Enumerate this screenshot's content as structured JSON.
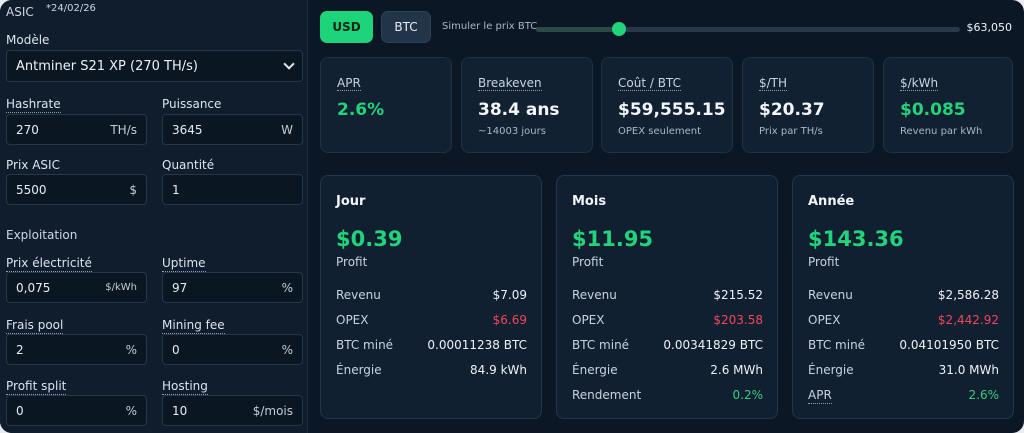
{
  "asic": {
    "title": "ASIC",
    "date": "*24/02/26",
    "model_label": "Modèle",
    "model_value": "Antminer S21 XP (270 TH/s)",
    "hashrate_label": "Hashrate",
    "hashrate_value": "270",
    "hashrate_unit": "TH/s",
    "power_label": "Puissance",
    "power_value": "3645",
    "power_unit": "W",
    "price_label": "Prix ASIC",
    "price_value": "5500",
    "price_unit": "$",
    "qty_label": "Quantité",
    "qty_value": "1"
  },
  "exploitation": {
    "title": "Exploitation",
    "elec_label": "Prix électricité",
    "elec_value": "0,075",
    "elec_unit": "$/kWh",
    "uptime_label": "Uptime",
    "uptime_value": "97",
    "uptime_unit": "%",
    "pool_label": "Frais pool",
    "pool_value": "2",
    "pool_unit": "%",
    "mining_fee_label": "Mining fee",
    "mining_fee_value": "0",
    "mining_fee_unit": "%",
    "split_label": "Profit split",
    "split_value": "0",
    "split_unit": "%",
    "hosting_label": "Hosting",
    "hosting_value": "10",
    "hosting_unit": "$/mois"
  },
  "topbar": {
    "usd_label": "USD",
    "btc_label": "BTC",
    "sim_label": "Simuler le prix BTC",
    "btc_price": "$63,050",
    "slider_fraction": 0.195
  },
  "metrics": [
    {
      "title": "APR",
      "value": "2.6%",
      "sub": ""
    },
    {
      "title": "Breakeven",
      "value": "38.4 ans",
      "sub": "~14003 jours"
    },
    {
      "title": "Coût / BTC",
      "value": "$59,555.15",
      "sub": "OPEX seulement"
    },
    {
      "title": "$/TH",
      "value": "$20.37",
      "sub": "Prix par TH/s"
    },
    {
      "title": "$/kWh",
      "value": "$0.085",
      "sub": "Revenu par kWh"
    }
  ],
  "periods": [
    {
      "title": "Jour",
      "profit": "$0.39",
      "profit_label": "Profit",
      "rows": [
        {
          "k": "Revenu",
          "v": "$7.09"
        },
        {
          "k": "OPEX",
          "v": "$6.69"
        },
        {
          "k": "BTC miné",
          "v": "0.00011238 BTC"
        },
        {
          "k": "Énergie",
          "v": "84.9 kWh"
        }
      ]
    },
    {
      "title": "Mois",
      "profit": "$11.95",
      "profit_label": "Profit",
      "rows": [
        {
          "k": "Revenu",
          "v": "$215.52"
        },
        {
          "k": "OPEX",
          "v": "$203.58"
        },
        {
          "k": "BTC miné",
          "v": "0.00341829 BTC"
        },
        {
          "k": "Énergie",
          "v": "2.6 MWh"
        },
        {
          "k": "Rendement",
          "v": "0.2%"
        }
      ]
    },
    {
      "title": "Année",
      "profit": "$143.36",
      "profit_label": "Profit",
      "rows": [
        {
          "k": "Revenu",
          "v": "$2,586.28"
        },
        {
          "k": "OPEX",
          "v": "$2,442.92"
        },
        {
          "k": "BTC miné",
          "v": "0.04101950 BTC"
        },
        {
          "k": "Énergie",
          "v": "31.0 MWh"
        },
        {
          "k": "APR",
          "v": "2.6%"
        }
      ]
    }
  ],
  "colors": {
    "accent": "#1ed47a",
    "negative": "#f0475a",
    "background": "#0b1725"
  }
}
